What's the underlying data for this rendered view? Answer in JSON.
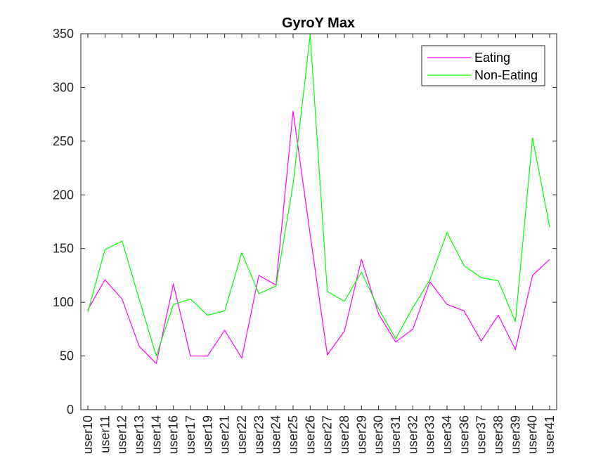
{
  "chart_data": {
    "type": "line",
    "title": "GyroY Max",
    "xlabel": "",
    "ylabel": "",
    "categories": [
      "user10",
      "user11",
      "user12",
      "user13",
      "user14",
      "user16",
      "user17",
      "user19",
      "user21",
      "user22",
      "user23",
      "user24",
      "user25",
      "user26",
      "user27",
      "user28",
      "user29",
      "user30",
      "user31",
      "user32",
      "user33",
      "user34",
      "user36",
      "user37",
      "user38",
      "user39",
      "user40",
      "user41"
    ],
    "ylim": [
      0,
      350
    ],
    "yticks": [
      "0",
      "50",
      "100",
      "150",
      "200",
      "250",
      "300",
      "350"
    ],
    "legend_position": "top-right",
    "grid": false,
    "series": [
      {
        "name": "Eating",
        "color": "#ff00ff",
        "values": [
          93,
          121,
          103,
          59,
          43,
          117,
          50,
          50,
          74,
          48,
          125,
          116,
          278,
          163,
          51,
          73,
          140,
          89,
          63,
          75,
          119,
          98,
          92,
          64,
          88,
          56,
          125,
          140
        ]
      },
      {
        "name": "Non-Eating",
        "color": "#00ff00",
        "values": [
          91,
          149,
          157,
          103,
          50,
          98,
          103,
          88,
          92,
          146,
          108,
          115,
          210,
          349,
          110,
          101,
          128,
          94,
          66,
          95,
          121,
          165,
          134,
          123,
          120,
          82,
          253,
          170
        ]
      }
    ]
  }
}
